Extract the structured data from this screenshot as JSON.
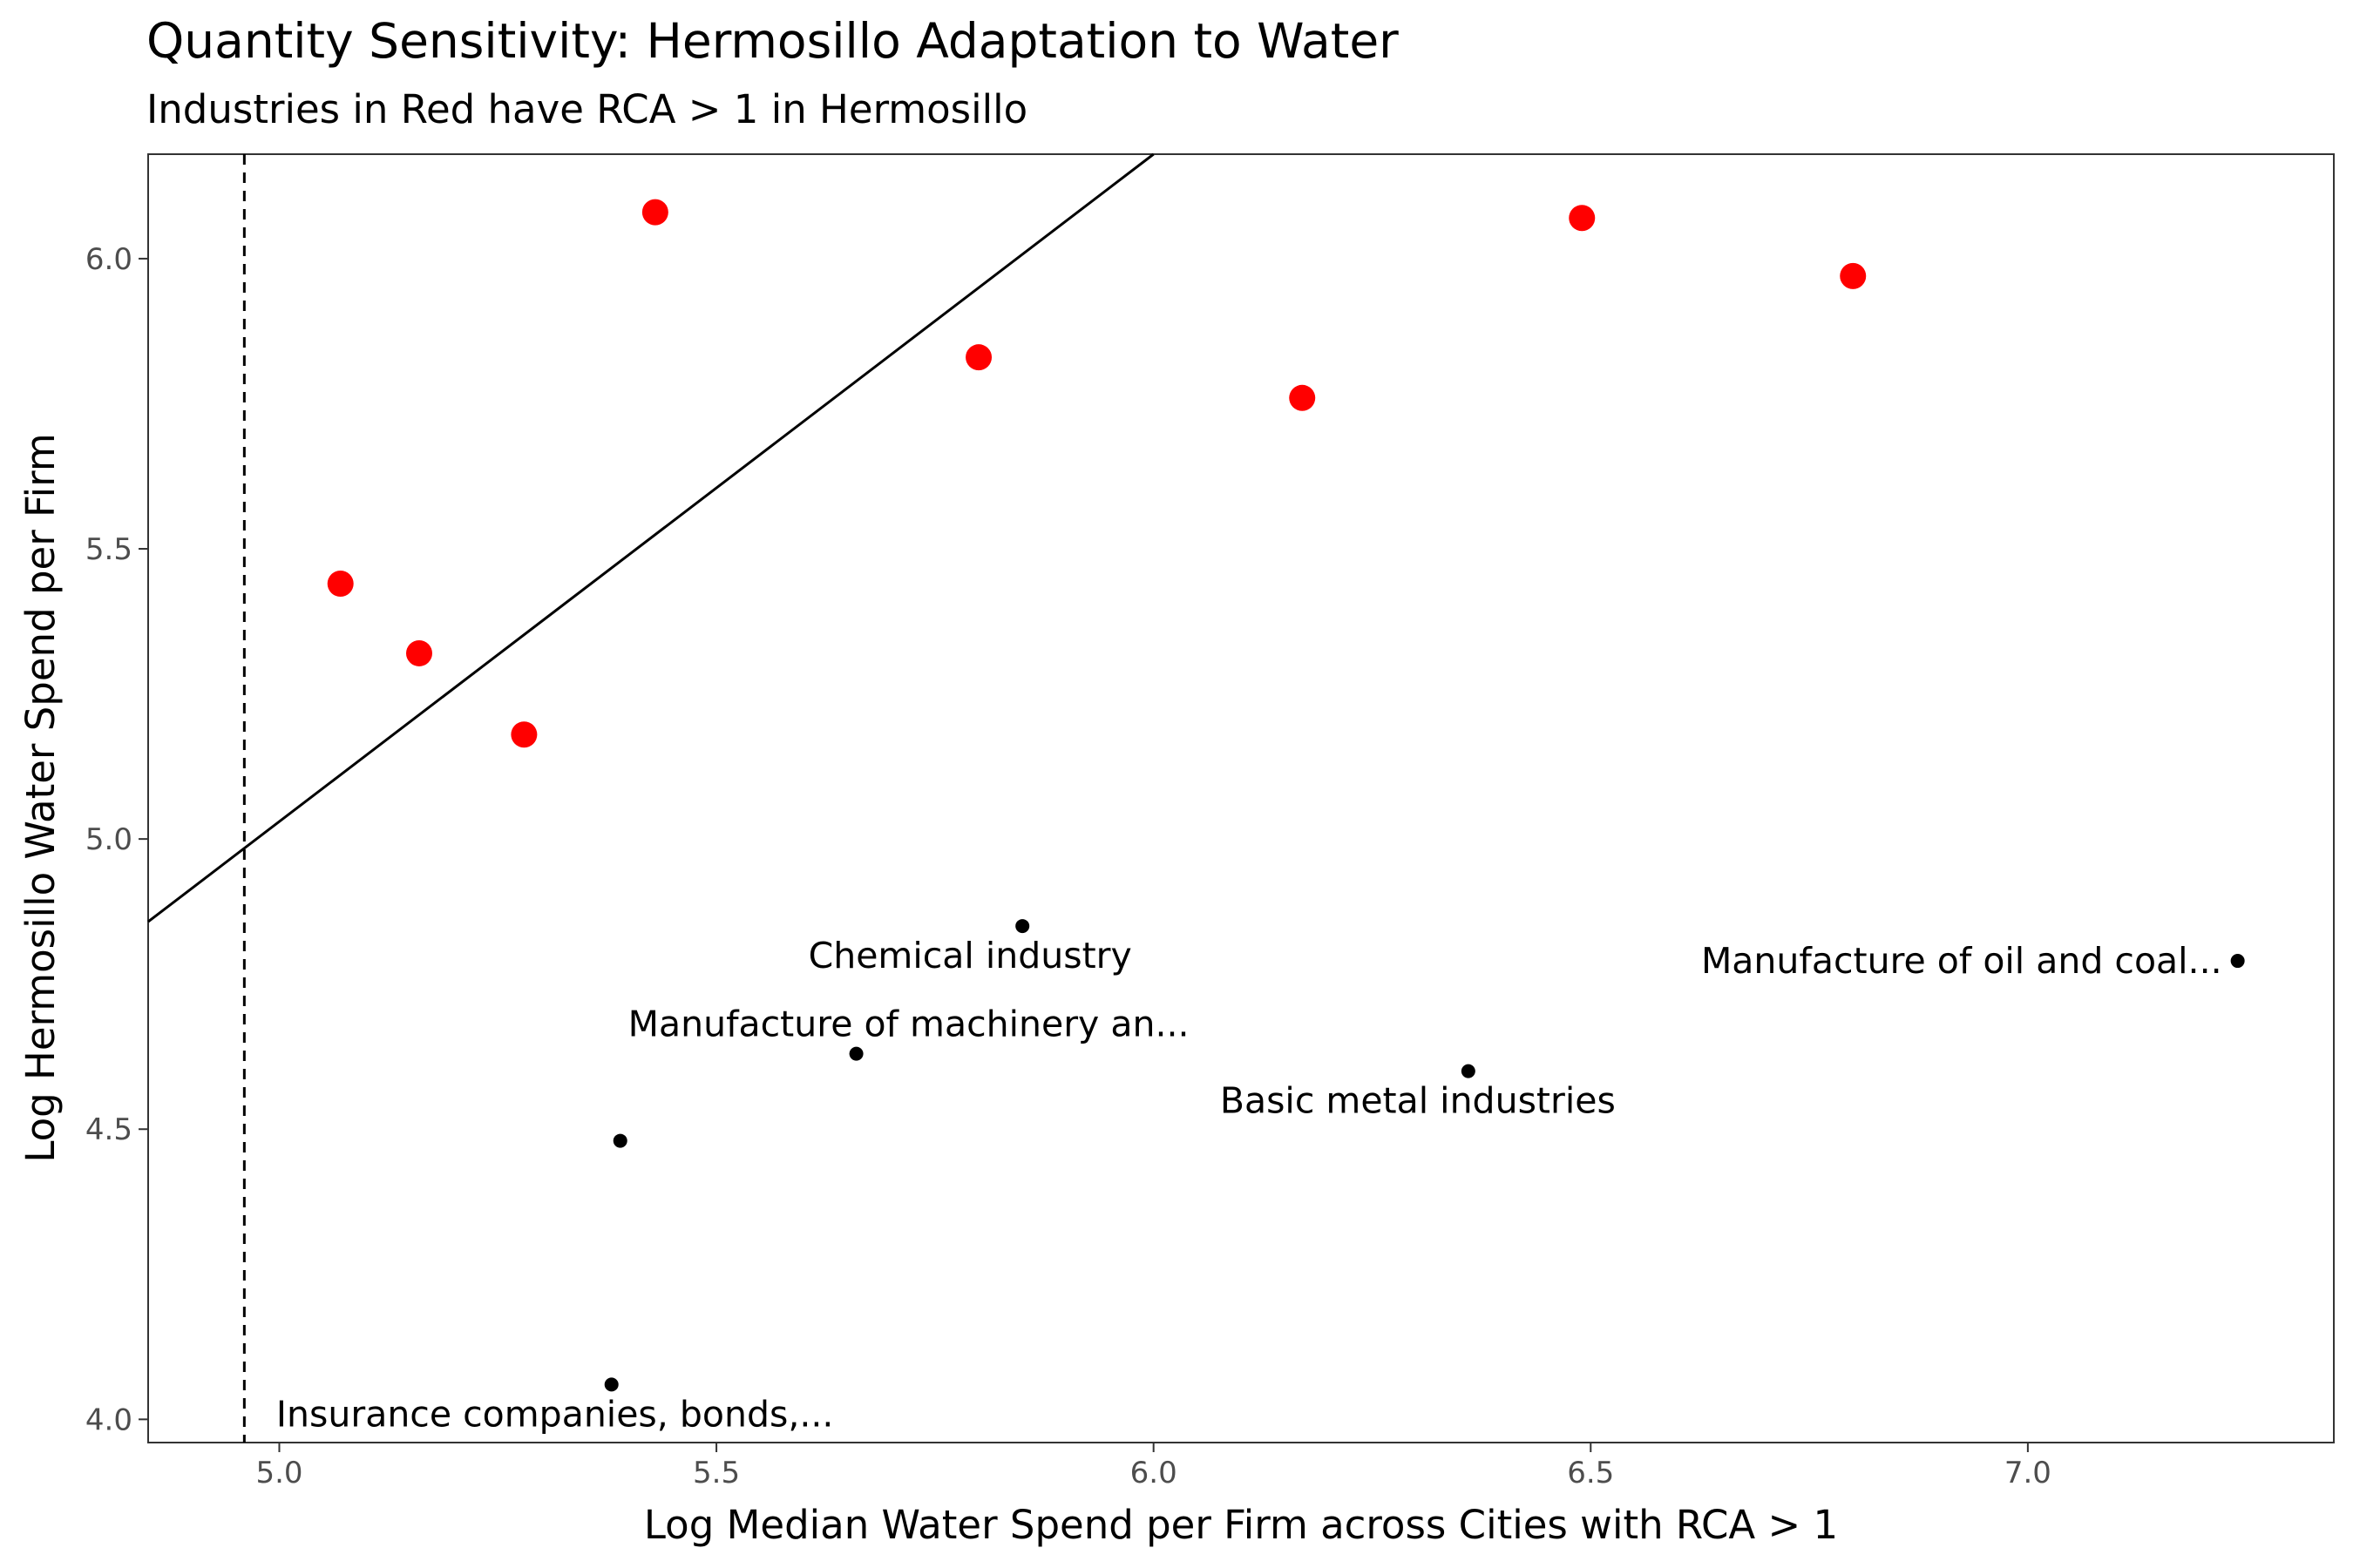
{
  "chart_data": {
    "type": "scatter",
    "title": "Quantity Sensitivity: Hermosillo Adaptation to Water",
    "subtitle": "Industries in Red have RCA > 1 in Hermosillo",
    "xlabel": "Log Median Water Spend per Firm across Cities with RCA > 1",
    "ylabel": "Log Hermosillo Water Spend per Firm",
    "xlim": [
      4.85,
      7.35
    ],
    "ylim": [
      3.96,
      6.18
    ],
    "x_ticks": [
      5.0,
      5.5,
      6.0,
      6.5,
      7.0
    ],
    "x_tick_labels": [
      "5.0",
      "5.5",
      "6.0",
      "6.5",
      "7.0"
    ],
    "y_ticks": [
      4.0,
      4.5,
      5.0,
      5.5,
      6.0
    ],
    "y_tick_labels": [
      "4.0",
      "4.5",
      "5.0",
      "5.5",
      "6.0"
    ],
    "grid": false,
    "reference_line": {
      "type": "vertical",
      "style": "dashed",
      "x": 4.96
    },
    "fit_line": {
      "slope": 1.15,
      "intercept": -0.72
    },
    "colors": {
      "rca_above_1": "#ff0000",
      "other": "#000000"
    },
    "series": [
      {
        "group": "rca_above_1",
        "points": [
          {
            "x": 5.07,
            "y": 5.44
          },
          {
            "x": 5.16,
            "y": 5.32
          },
          {
            "x": 5.28,
            "y": 5.18
          },
          {
            "x": 5.43,
            "y": 6.08
          },
          {
            "x": 5.8,
            "y": 5.83
          },
          {
            "x": 6.17,
            "y": 5.76
          },
          {
            "x": 6.49,
            "y": 6.07
          },
          {
            "x": 6.8,
            "y": 5.97
          }
        ]
      },
      {
        "group": "other",
        "points": [
          {
            "x": 5.85,
            "y": 4.85,
            "label": "Chemical industry"
          },
          {
            "x": 5.66,
            "y": 4.63,
            "label": "Manufacture of machinery an..."
          },
          {
            "x": 5.39,
            "y": 4.48
          },
          {
            "x": 6.36,
            "y": 4.6,
            "label": "Basic metal industries"
          },
          {
            "x": 7.24,
            "y": 4.79,
            "label": "Manufacture of oil and coal..."
          },
          {
            "x": 5.38,
            "y": 4.06,
            "label": "Insurance companies, bonds,..."
          }
        ]
      }
    ]
  }
}
